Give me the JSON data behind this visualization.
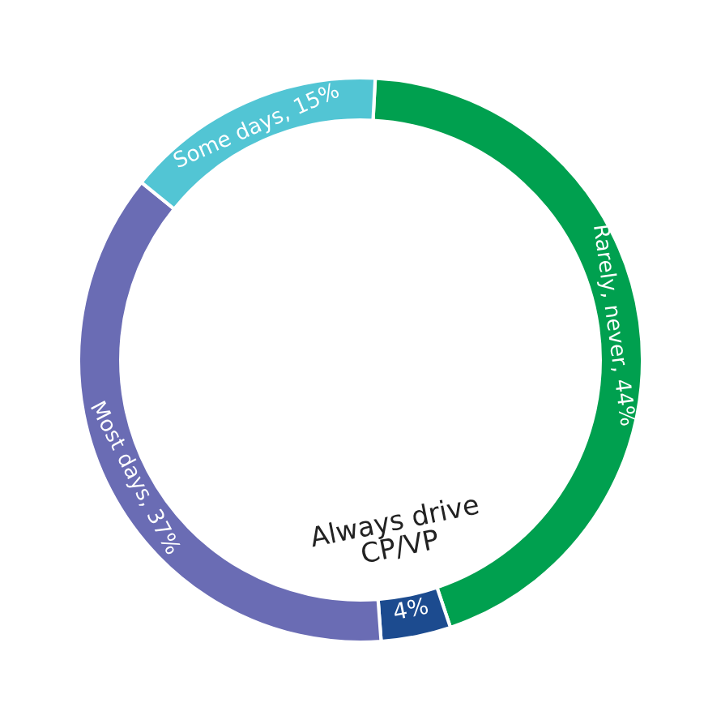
{
  "chart_data": {
    "type": "donut",
    "categories": [
      "Rarely, never",
      "Always drive\nCP/VP",
      "Most days",
      "Some days"
    ],
    "values": [
      44,
      4,
      37,
      15
    ],
    "value_labels": [
      "44%",
      "4%",
      "37%",
      "15%"
    ],
    "colors": [
      "#00a04f",
      "#1c4b8f",
      "#6a6cb4",
      "#52c5d4"
    ]
  }
}
